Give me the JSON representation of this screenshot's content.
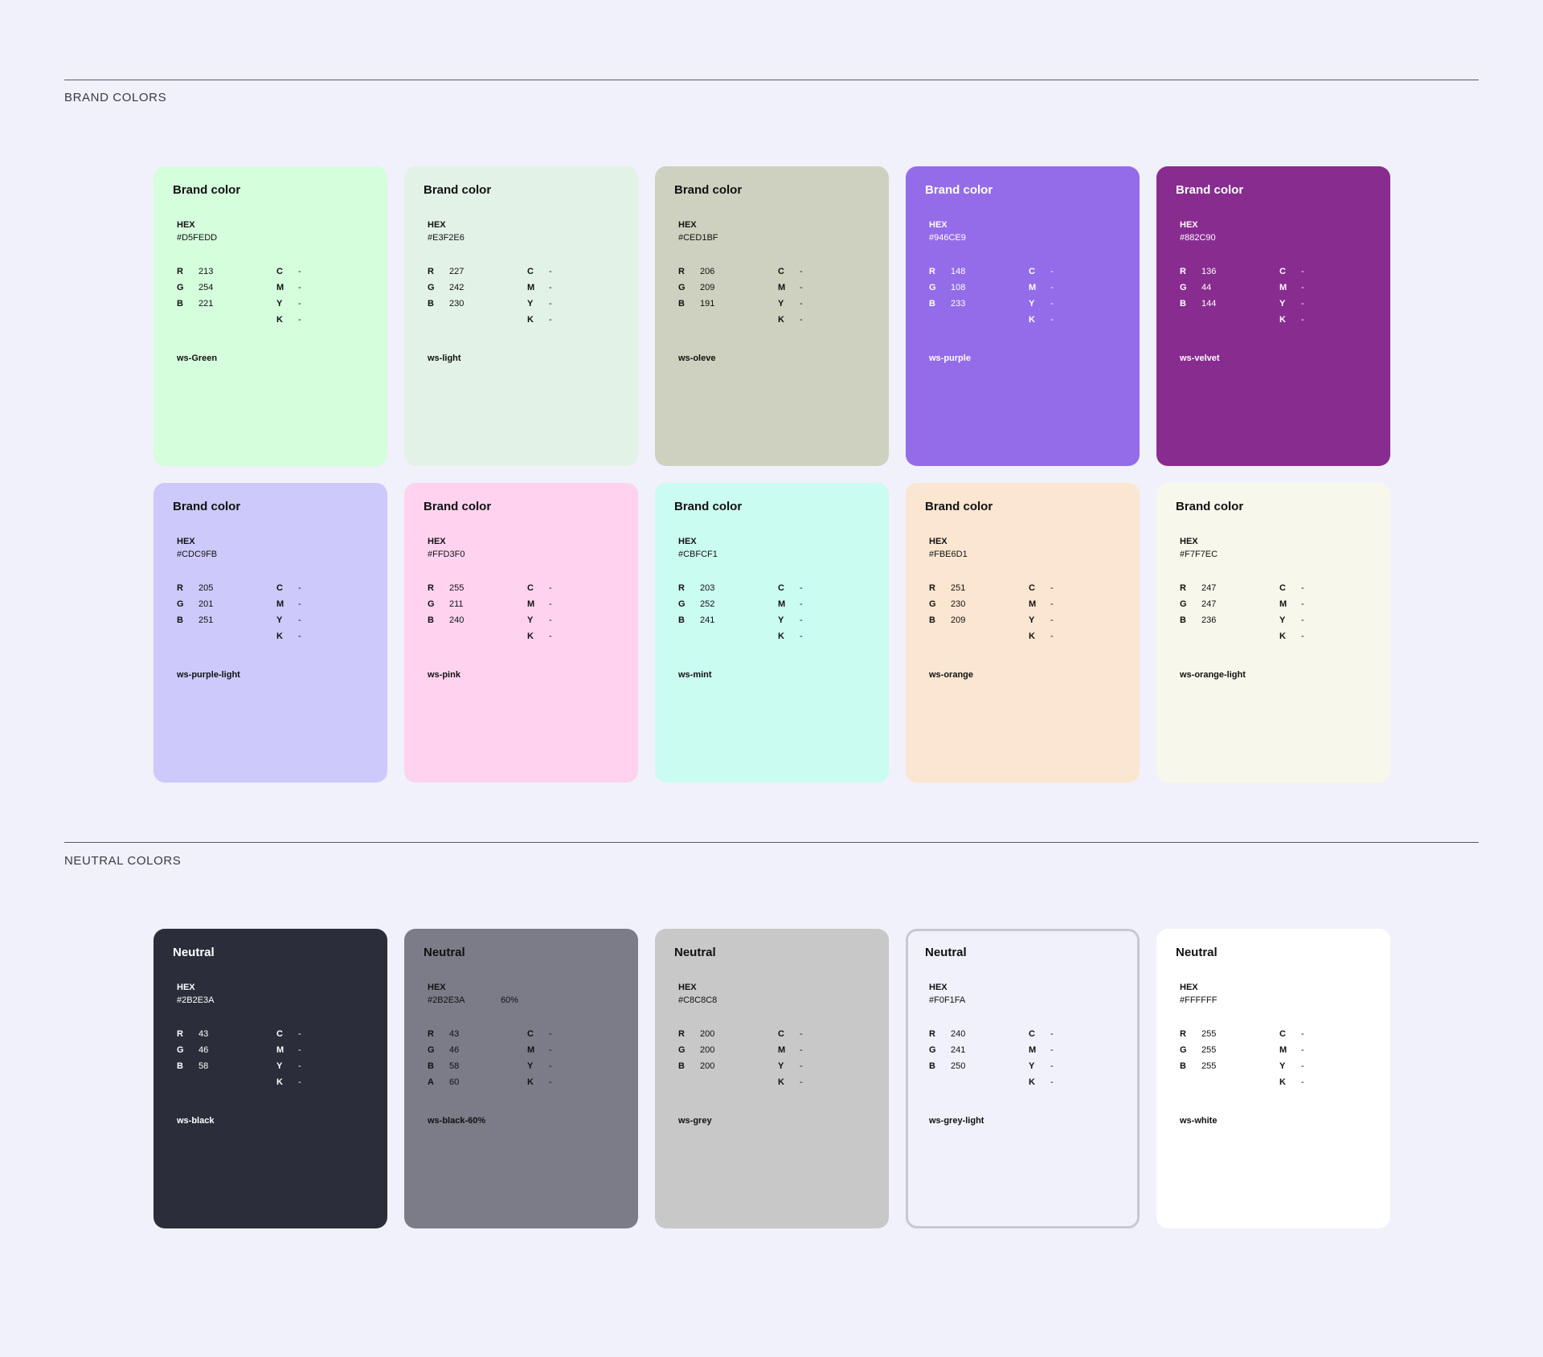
{
  "brand_section": {
    "title": "BRAND COLORS",
    "cards": [
      {
        "title": "Brand color",
        "hex_label": "HEX",
        "hex": "#D5FEDD",
        "r": "213",
        "g": "254",
        "b": "221",
        "c": "-",
        "m": "-",
        "y": "-",
        "k": "-",
        "token": "ws-Green",
        "bg": "#D5FEDD",
        "text_color": "light"
      },
      {
        "title": "Brand color",
        "hex_label": "HEX",
        "hex": "#E3F2E6",
        "r": "227",
        "g": "242",
        "b": "230",
        "c": "-",
        "m": "-",
        "y": "-",
        "k": "-",
        "token": "ws-light",
        "bg": "#E3F2E6",
        "text_color": "light"
      },
      {
        "title": "Brand color",
        "hex_label": "HEX",
        "hex": "#CED1BF",
        "r": "206",
        "g": "209",
        "b": "191",
        "c": "-",
        "m": "-",
        "y": "-",
        "k": "-",
        "token": "ws-oleve",
        "bg": "#CED1BF",
        "text_color": "light"
      },
      {
        "title": "Brand color",
        "hex_label": "HEX",
        "hex": "#946CE9",
        "r": "148",
        "g": "108",
        "b": "233",
        "c": "-",
        "m": "-",
        "y": "-",
        "k": "-",
        "token": "ws-purple",
        "bg": "#946CE9",
        "text_color": "dark"
      },
      {
        "title": "Brand color",
        "hex_label": "HEX",
        "hex": "#882C90",
        "r": "136",
        "g": "44",
        "b": "144",
        "c": "-",
        "m": "-",
        "y": "-",
        "k": "-",
        "token": "ws-velvet",
        "bg": "#882C90",
        "text_color": "dark"
      },
      {
        "title": "Brand color",
        "hex_label": "HEX",
        "hex": "#CDC9FB",
        "r": "205",
        "g": "201",
        "b": "251",
        "c": "-",
        "m": "-",
        "y": "-",
        "k": "-",
        "token": "ws-purple-light",
        "bg": "#CDC9FB",
        "text_color": "light"
      },
      {
        "title": "Brand color",
        "hex_label": "HEX",
        "hex": "#FFD3F0",
        "r": "255",
        "g": "211",
        "b": "240",
        "c": "-",
        "m": "-",
        "y": "-",
        "k": "-",
        "token": "ws-pink",
        "bg": "#FFD3F0",
        "text_color": "light"
      },
      {
        "title": "Brand color",
        "hex_label": "HEX",
        "hex": "#CBFCF1",
        "r": "203",
        "g": "252",
        "b": "241",
        "c": "-",
        "m": "-",
        "y": "-",
        "k": "-",
        "token": "ws-mint",
        "bg": "#CBFCF1",
        "text_color": "light"
      },
      {
        "title": "Brand color",
        "hex_label": "HEX",
        "hex": "#FBE6D1",
        "r": "251",
        "g": "230",
        "b": "209",
        "c": "-",
        "m": "-",
        "y": "-",
        "k": "-",
        "token": "ws-orange",
        "bg": "#FBE6D1",
        "text_color": "light"
      },
      {
        "title": "Brand color",
        "hex_label": "HEX",
        "hex": "#F7F7EC",
        "r": "247",
        "g": "247",
        "b": "236",
        "c": "-",
        "m": "-",
        "y": "-",
        "k": "-",
        "token": "ws-orange-light",
        "bg": "#F7F7EC",
        "text_color": "light"
      }
    ]
  },
  "neutral_section": {
    "title": "NEUTRAL COLORS",
    "cards": [
      {
        "title": "Neutral",
        "hex_label": "HEX",
        "hex": "#2B2E3A",
        "r": "43",
        "g": "46",
        "b": "58",
        "c": "-",
        "m": "-",
        "y": "-",
        "k": "-",
        "token": "ws-black",
        "bg": "#2B2E3A",
        "text_color": "dark"
      },
      {
        "title": "Neutral",
        "hex_label": "HEX",
        "hex": "#2B2E3A",
        "opacity": "60%",
        "r": "43",
        "g": "46",
        "b": "58",
        "a": "60",
        "c": "-",
        "m": "-",
        "y": "-",
        "k": "-",
        "token": "ws-black-60%",
        "bg": "#7C7C88",
        "text_color": "light"
      },
      {
        "title": "Neutral",
        "hex_label": "HEX",
        "hex": "#C8C8C8",
        "r": "200",
        "g": "200",
        "b": "200",
        "c": "-",
        "m": "-",
        "y": "-",
        "k": "-",
        "token": "ws-grey",
        "bg": "#C8C8C8",
        "text_color": "light"
      },
      {
        "title": "Neutral",
        "hex_label": "HEX",
        "hex": "#F0F1FA",
        "r": "240",
        "g": "241",
        "b": "250",
        "c": "-",
        "m": "-",
        "y": "-",
        "k": "-",
        "token": "ws-grey-light",
        "bg": "#F0F1FA",
        "text_color": "light",
        "outlined": true
      },
      {
        "title": "Neutral",
        "hex_label": "HEX",
        "hex": "#FFFFFF",
        "r": "255",
        "g": "255",
        "b": "255",
        "c": "-",
        "m": "-",
        "y": "-",
        "k": "-",
        "token": "ws-white",
        "bg": "#FFFFFF",
        "text_color": "light"
      }
    ]
  }
}
